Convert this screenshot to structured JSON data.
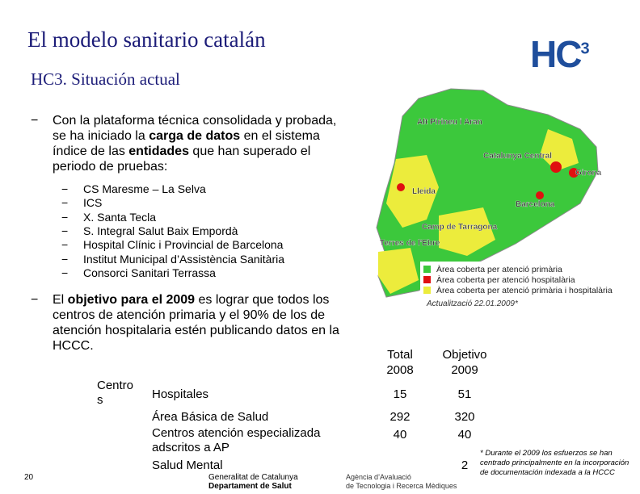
{
  "header": {
    "title": "El modelo sanitario catalán",
    "subtitle": "HC3. Situación actual",
    "logo": "HC",
    "logo_sup": "3"
  },
  "bullets": [
    {
      "segments": [
        {
          "text": "Con  la plataforma técnica consolidada y probada, se ha iniciado la ",
          "bold": false
        },
        {
          "text": "carga de datos",
          "bold": true
        },
        {
          "text": " en el sistema índice de las ",
          "bold": false
        },
        {
          "text": "entidades",
          "bold": true
        },
        {
          "text": " que han superado el periodo de pruebas:",
          "bold": false
        }
      ],
      "items": [
        "CS Maresme – La Selva",
        "ICS",
        "X. Santa Tecla",
        "S. Integral Salut Baix Empordà",
        "Hospital Clínic i Provincial de Barcelona",
        "Institut Municipal d’Assistència Sanitària",
        "Consorci Sanitari Terrassa"
      ]
    },
    {
      "segments": [
        {
          "text": "El ",
          "bold": false
        },
        {
          "text": "objetivo para el 2009",
          "bold": true
        },
        {
          "text": " es lograr que todos los centros de atención primaria y el 90% de los de atención hospitalaria estén publicando datos en la HCCC.",
          "bold": false
        }
      ],
      "items": []
    }
  ],
  "table": {
    "corner": "Centros",
    "headers": [
      "Total 2008",
      "Objetivo 2009"
    ],
    "rows": [
      {
        "label": "Hospitales",
        "total": 15,
        "objective": 51
      },
      {
        "label": "Área Básica de Salud",
        "total": 292,
        "objective": 320
      },
      {
        "label": "Centros atención especializada adscritos a AP",
        "total": 40,
        "objective": 40
      },
      {
        "label": "Salud Mental",
        "objective": 2
      }
    ]
  },
  "map": {
    "regions": [
      "Alt Pirineu i Aran",
      "Girona",
      "Catalunya Central",
      "Lleida",
      "Barcelona",
      "Camp de Tarragona",
      "Terres de l'Ebre"
    ],
    "legend": [
      "Àrea coberta per atenció primària",
      "Àrea coberta per atenció hospitalària",
      "Àrea coberta per atenció primària i hospitalària"
    ],
    "updated": "Actualització 22.01.2009*"
  },
  "footnote": "* Durante el 2009 los esfuerzos se han centrado principalmente en la incorporación de documentación indexada a la HCCC",
  "page_number": "20",
  "footer": {
    "logo1_line1": "Generalitat de Catalunya",
    "logo1_line2": "Departament de Salut",
    "logo2_line1": "Agència d’Avaluació",
    "logo2_line2": "de Tecnologia i Recerca Mèdiques"
  }
}
